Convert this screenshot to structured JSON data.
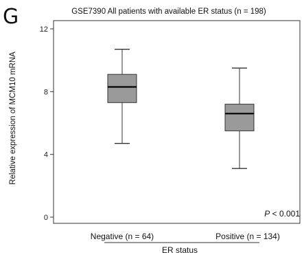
{
  "panel": {
    "letter": "G"
  },
  "chart_data": {
    "type": "box",
    "title": "GSE7390 All patients with available ER status (n = 198)",
    "xlabel": "ER status",
    "ylabel": "Relative expression of MCM10 mRNA",
    "ylim": [
      0,
      12
    ],
    "yticks": [
      0,
      4,
      8,
      12
    ],
    "ytick_labels": [
      "0",
      "4",
      "8",
      "12"
    ],
    "categories": [
      "Negative (n = 64)",
      "Positive (n = 134)"
    ],
    "boxes": [
      {
        "name": "Negative (n = 64)",
        "whisker_low": 4.7,
        "q1": 7.3,
        "median": 8.3,
        "q3": 9.1,
        "whisker_high": 10.7
      },
      {
        "name": "Positive (n = 134)",
        "whisker_low": 3.1,
        "q1": 5.5,
        "median": 6.6,
        "q3": 7.2,
        "whisker_high": 9.5
      }
    ],
    "annotation_p_italic": "P",
    "annotation_p_rest": " < 0.001",
    "box_fill": "#9a9a9a",
    "grid": false
  }
}
